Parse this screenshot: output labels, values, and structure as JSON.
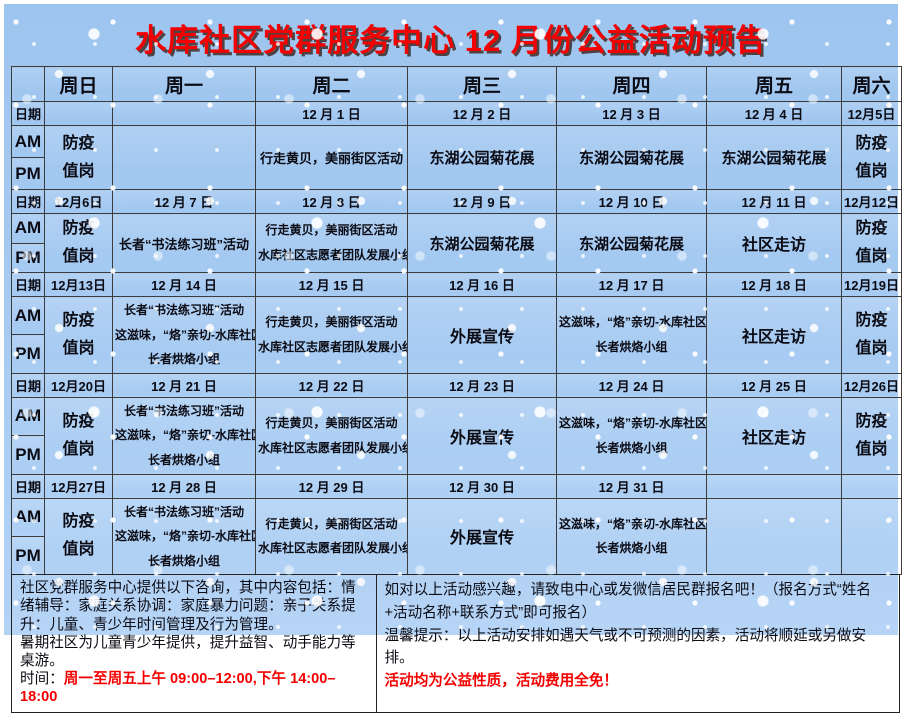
{
  "title": "水库社区党群服务中心 12 月份公益活动预告",
  "table": {
    "corner": "",
    "day_headers": [
      "周日",
      "周一",
      "周二",
      "周三",
      "周四",
      "周五",
      "周六"
    ],
    "date_label": "日期",
    "am_label": "AM",
    "pm_label": "PM",
    "weeks": [
      {
        "dates": [
          "",
          "",
          "12 月 1 日",
          "12 月 2 日",
          "12 月 3 日",
          "12 月 4 日",
          "12月5日"
        ],
        "activities": [
          [
            "防疫",
            "值岗"
          ],
          [],
          [
            "行走黄贝，美丽街区活动"
          ],
          [
            "东湖公园菊花展"
          ],
          [
            "东湖公园菊花展"
          ],
          [
            "东湖公园菊花展"
          ],
          [
            "防疫",
            "值岗"
          ]
        ]
      },
      {
        "dates": [
          "12月6日",
          "12 月 7 日",
          "12 月 8 日",
          "12 月 9 日",
          "12 月 10 日",
          "12 月 11 日",
          "12月12日"
        ],
        "activities": [
          [
            "防疫",
            "值岗"
          ],
          [
            "长者“书法练习班”活动"
          ],
          [
            "行走黄贝，美丽街区活动",
            "水库社区志愿者团队发展小组"
          ],
          [
            "东湖公园菊花展"
          ],
          [
            "东湖公园菊花展"
          ],
          [
            "社区走访"
          ],
          [
            "防疫",
            "值岗"
          ]
        ]
      },
      {
        "dates": [
          "12月13日",
          "12 月 14 日",
          "12 月 15 日",
          "12 月 16 日",
          "12 月 17 日",
          "12 月 18 日",
          "12月19日"
        ],
        "activities": [
          [
            "防疫",
            "值岗"
          ],
          [
            "长者“书法练习班”活动",
            "这滋味，“烙”亲切-水库社区",
            "长者烘烙小组"
          ],
          [
            "行走黄贝，美丽街区活动",
            "水库社区志愿者团队发展小组"
          ],
          [
            "外展宣传"
          ],
          [
            "这滋味，“烙”亲切-水库社区",
            "长者烘烙小组"
          ],
          [
            "社区走访"
          ],
          [
            "防疫",
            "值岗"
          ]
        ]
      },
      {
        "dates": [
          "12月20日",
          "12 月 21 日",
          "12 月 22 日",
          "12 月 23 日",
          "12 月 24 日",
          "12 月 25 日",
          "12月26日"
        ],
        "activities": [
          [
            "防疫",
            "值岗"
          ],
          [
            "长者“书法练习班”活动",
            "这滋味，“烙”亲切-水库社区",
            "长者烘烙小组"
          ],
          [
            "行走黄贝，美丽街区活动",
            "水库社区志愿者团队发展小组"
          ],
          [
            "外展宣传"
          ],
          [
            "这滋味，“烙”亲切-水库社区",
            "长者烘烙小组"
          ],
          [
            "社区走访"
          ],
          [
            "防疫",
            "值岗"
          ]
        ]
      },
      {
        "dates": [
          "12月27日",
          "12 月 28 日",
          "12 月 29 日",
          "12 月 30 日",
          "12 月 31 日",
          "",
          ""
        ],
        "activities": [
          [
            "防疫",
            "值岗"
          ],
          [
            "长者“书法练习班”活动",
            "这滋味，“烙”亲切-水库社区",
            "长者烘烙小组"
          ],
          [
            "行走黄贝，美丽街区活动",
            "水库社区志愿者团队发展小组"
          ],
          [
            "外展宣传"
          ],
          [
            "这滋味，“烙”亲切-水库社区",
            "长者烘烙小组"
          ],
          [],
          []
        ]
      }
    ]
  },
  "footer": {
    "left": {
      "consult": "社区党群服务中心提供以下咨询，其中内容包括：情绪辅导：家庭关系协调：家庭暴力问题：亲子关系提升：儿童、青少年时间管理及行为管理。",
      "summer": "暑期社区为儿童青少年提供，提升益智、动手能力等桌游。",
      "time_label": "时间：",
      "time_value": "周一至周五上午 09:00–12:00,下午 14:00–18:00"
    },
    "right": {
      "signup": "如对以上活动感兴趣，请致电中心或发微信居民群报名吧！（报名方式“姓名+活动名称+联系方式”即可报名）",
      "notice": "温馨提示：以上活动安排如遇天气或不可预测的因素，活动将顺延或另做安排。",
      "free": "活动均为公益性质，活动费用全免！"
    }
  },
  "colors": {
    "accent_red": "#f40000",
    "background_blue": "#a7cbf2",
    "text": "#0b0b14"
  }
}
